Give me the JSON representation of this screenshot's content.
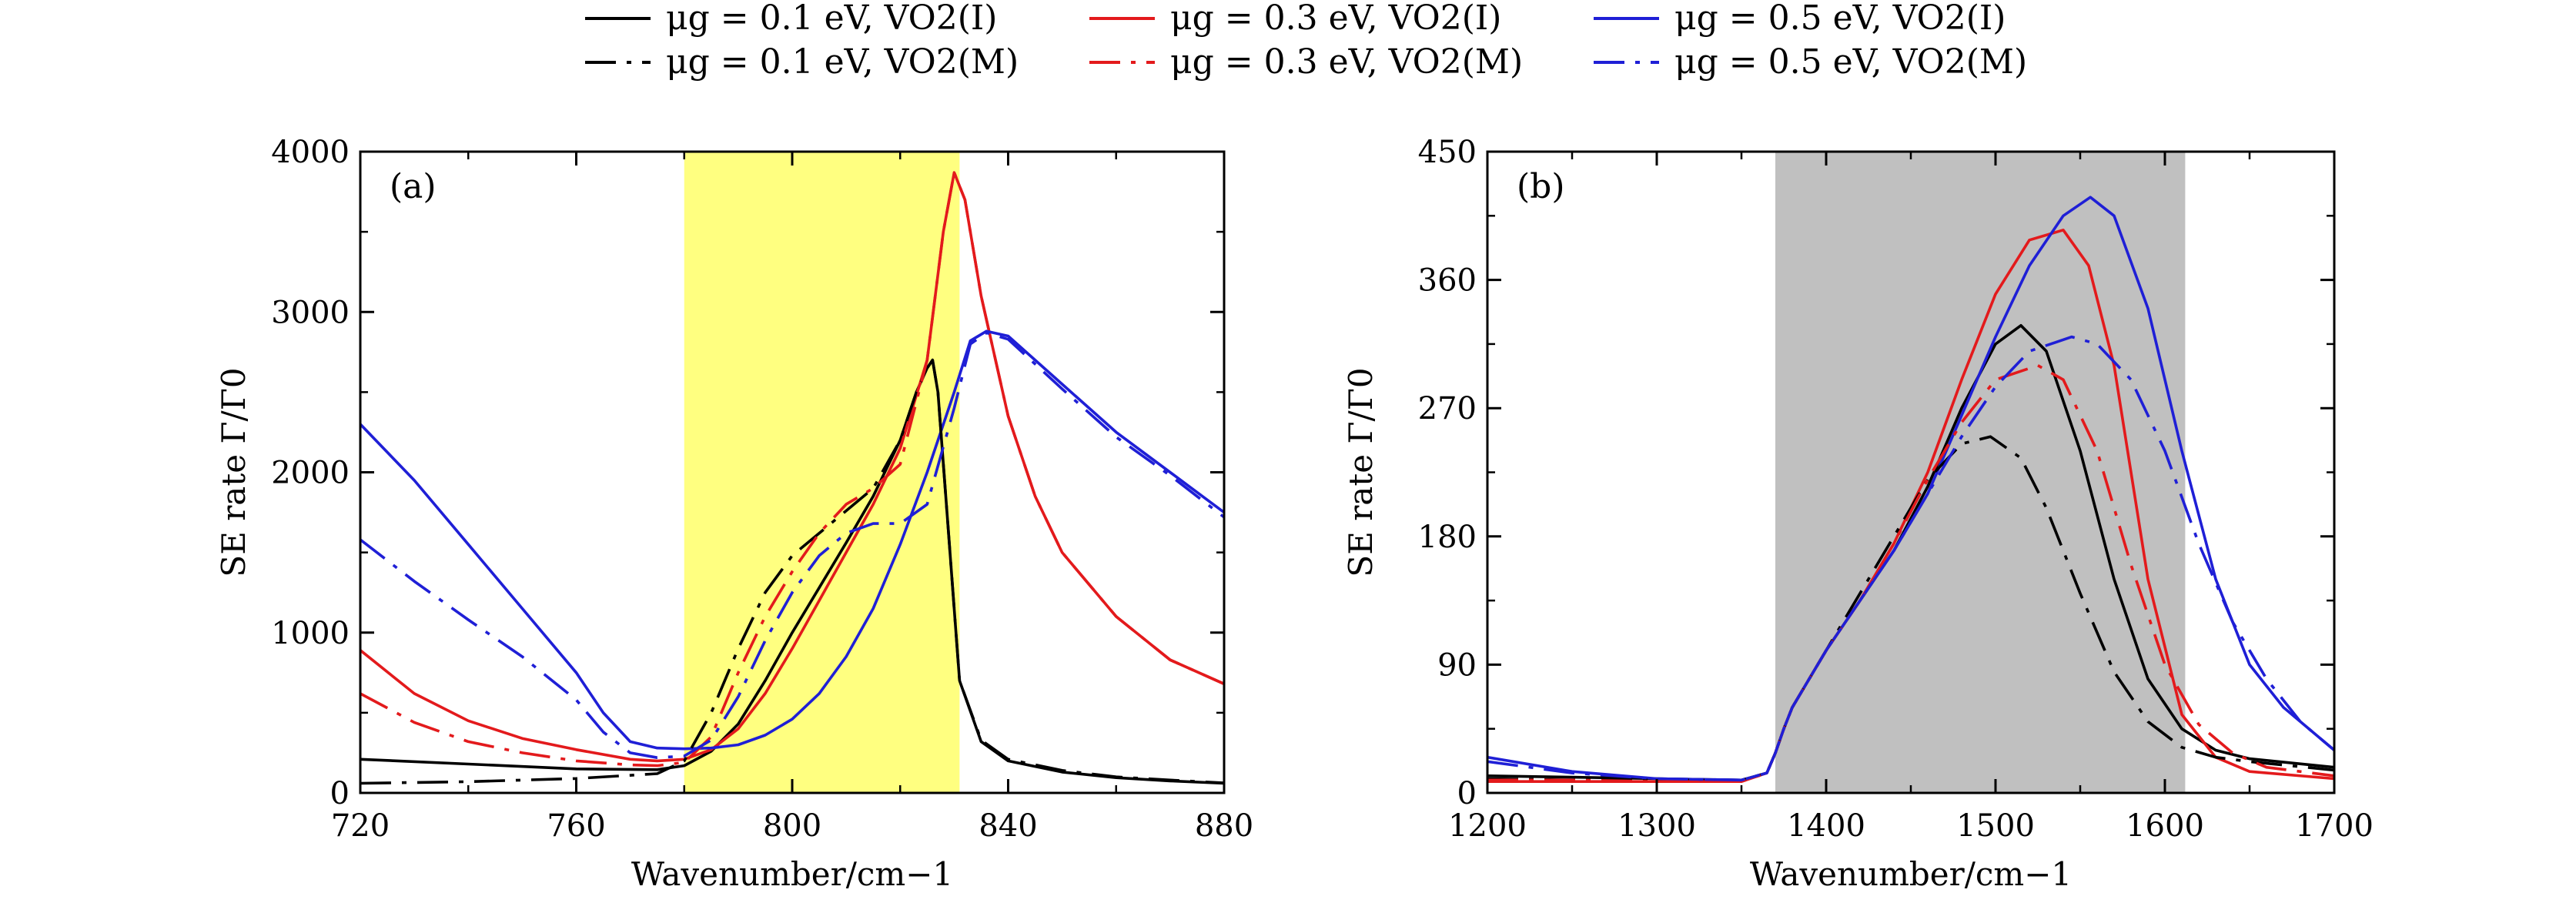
{
  "legend": [
    {
      "label": "μg = 0.1 eV, VO2(I)",
      "color": "#000000",
      "dash": "solid"
    },
    {
      "label": "μg = 0.3 eV, VO2(I)",
      "color": "#e31a1c",
      "dash": "solid"
    },
    {
      "label": "μg = 0.5 eV, VO2(I)",
      "color": "#1f1fd6",
      "dash": "solid"
    },
    {
      "label": "μg = 0.1 eV, VO2(M)",
      "color": "#000000",
      "dash": "dashdot"
    },
    {
      "label": "μg = 0.3 eV, VO2(M)",
      "color": "#e31a1c",
      "dash": "dashdot"
    },
    {
      "label": "μg = 0.5 eV, VO2(M)",
      "color": "#1f1fd6",
      "dash": "dashdot"
    }
  ],
  "chart_data": [
    {
      "type": "line",
      "panel": "(a)",
      "xlabel": "Wavenumber/cm−1",
      "ylabel": "SE rate Γ/Γ0",
      "xlim": [
        720,
        880
      ],
      "ylim": [
        0,
        4000
      ],
      "xticks": [
        720,
        760,
        800,
        840,
        880
      ],
      "yticks": [
        0,
        1000,
        2000,
        3000,
        4000
      ],
      "shaded_band": {
        "from": 780,
        "to": 831,
        "color": "#ffff80"
      },
      "series": [
        {
          "name": "μg = 0.1 eV, VO2(I)",
          "color": "#000000",
          "dash": "solid",
          "x": [
            720,
            740,
            760,
            775,
            780,
            785,
            790,
            795,
            800,
            805,
            810,
            815,
            820,
            823,
            825,
            826,
            827,
            829,
            831,
            835,
            840,
            850,
            860,
            870,
            880
          ],
          "y": [
            210,
            180,
            150,
            145,
            170,
            260,
            430,
            700,
            1000,
            1280,
            1560,
            1850,
            2200,
            2500,
            2650,
            2700,
            2500,
            1600,
            700,
            320,
            200,
            130,
            95,
            75,
            60
          ]
        },
        {
          "name": "μg = 0.3 eV, VO2(I)",
          "color": "#e31a1c",
          "dash": "solid",
          "x": [
            720,
            730,
            740,
            750,
            760,
            770,
            775,
            780,
            785,
            790,
            795,
            800,
            805,
            810,
            815,
            820,
            825,
            828,
            830,
            832,
            835,
            840,
            845,
            850,
            860,
            870,
            880
          ],
          "y": [
            890,
            620,
            450,
            340,
            270,
            210,
            200,
            210,
            270,
            400,
            620,
            900,
            1200,
            1500,
            1800,
            2150,
            2700,
            3500,
            3870,
            3700,
            3100,
            2350,
            1850,
            1500,
            1100,
            830,
            680
          ]
        },
        {
          "name": "μg = 0.5 eV, VO2(I)",
          "color": "#1f1fd6",
          "dash": "solid",
          "x": [
            720,
            730,
            740,
            750,
            760,
            765,
            770,
            775,
            780,
            785,
            790,
            795,
            800,
            805,
            810,
            815,
            820,
            825,
            830,
            833,
            836,
            840,
            850,
            860,
            870,
            880
          ],
          "y": [
            2300,
            1950,
            1550,
            1150,
            750,
            500,
            320,
            280,
            275,
            280,
            300,
            360,
            460,
            620,
            850,
            1150,
            1550,
            2000,
            2500,
            2820,
            2880,
            2850,
            2550,
            2250,
            2000,
            1750
          ]
        },
        {
          "name": "μg = 0.1 eV, VO2(M)",
          "color": "#000000",
          "dash": "dashdot",
          "x": [
            720,
            740,
            760,
            775,
            780,
            785,
            790,
            795,
            800,
            805,
            810,
            815,
            820,
            823,
            825,
            826,
            827,
            829,
            831,
            835,
            840,
            850,
            860,
            870,
            880
          ],
          "y": [
            60,
            70,
            90,
            120,
            200,
            500,
            900,
            1250,
            1480,
            1620,
            1760,
            1900,
            2200,
            2500,
            2650,
            2700,
            2500,
            1600,
            700,
            330,
            210,
            140,
            100,
            80,
            62
          ]
        },
        {
          "name": "μg = 0.3 eV, VO2(M)",
          "color": "#e31a1c",
          "dash": "dashdot",
          "x": [
            720,
            730,
            740,
            750,
            760,
            770,
            775,
            780,
            785,
            790,
            795,
            800,
            805,
            810,
            815,
            820,
            825,
            828,
            830,
            832,
            835,
            840,
            845,
            850,
            860,
            870,
            880
          ],
          "y": [
            620,
            440,
            320,
            250,
            200,
            175,
            170,
            190,
            350,
            750,
            1100,
            1380,
            1620,
            1800,
            1900,
            2050,
            2700,
            3500,
            3870,
            3700,
            3100,
            2350,
            1850,
            1500,
            1100,
            830,
            680
          ]
        },
        {
          "name": "μg = 0.5 eV, VO2(M)",
          "color": "#1f1fd6",
          "dash": "dashdot",
          "x": [
            720,
            730,
            740,
            750,
            760,
            765,
            770,
            775,
            780,
            785,
            790,
            795,
            800,
            805,
            810,
            815,
            820,
            825,
            830,
            833,
            836,
            840,
            850,
            860,
            870,
            880
          ],
          "y": [
            1580,
            1320,
            1080,
            850,
            580,
            380,
            250,
            220,
            230,
            330,
            600,
            950,
            1250,
            1480,
            1620,
            1680,
            1680,
            1800,
            2400,
            2800,
            2870,
            2830,
            2520,
            2220,
            1980,
            1720
          ]
        }
      ]
    },
    {
      "type": "line",
      "panel": "(b)",
      "xlabel": "Wavenumber/cm−1",
      "ylabel": "SE rate Γ/Γ0",
      "xlim": [
        1200,
        1700
      ],
      "ylim": [
        0,
        450
      ],
      "xticks": [
        1200,
        1300,
        1400,
        1500,
        1600,
        1700
      ],
      "yticks": [
        0,
        90,
        180,
        270,
        360,
        450
      ],
      "shaded_band": {
        "from": 1370,
        "to": 1612,
        "color": "#c0c0c0"
      },
      "series": [
        {
          "name": "μg = 0.1 eV, VO2(I)",
          "color": "#000000",
          "dash": "solid",
          "x": [
            1200,
            1250,
            1300,
            1350,
            1365,
            1370,
            1375,
            1380,
            1400,
            1420,
            1440,
            1460,
            1480,
            1500,
            1515,
            1530,
            1550,
            1570,
            1590,
            1610,
            1630,
            1650,
            1700
          ],
          "y": [
            12,
            11,
            10,
            9,
            14,
            28,
            45,
            60,
            100,
            135,
            170,
            215,
            270,
            315,
            328,
            310,
            240,
            150,
            80,
            45,
            30,
            24,
            18
          ]
        },
        {
          "name": "μg = 0.3 eV, VO2(I)",
          "color": "#e31a1c",
          "dash": "solid",
          "x": [
            1200,
            1250,
            1300,
            1350,
            1365,
            1370,
            1375,
            1380,
            1400,
            1420,
            1440,
            1460,
            1480,
            1500,
            1520,
            1540,
            1555,
            1570,
            1590,
            1610,
            1630,
            1650,
            1700
          ],
          "y": [
            8,
            8,
            8,
            8,
            14,
            28,
            45,
            60,
            100,
            135,
            175,
            225,
            290,
            350,
            388,
            395,
            370,
            300,
            150,
            55,
            25,
            15,
            10
          ]
        },
        {
          "name": "μg = 0.5 eV, VO2(I)",
          "color": "#1f1fd6",
          "dash": "solid",
          "x": [
            1200,
            1250,
            1300,
            1350,
            1365,
            1370,
            1375,
            1380,
            1400,
            1420,
            1440,
            1460,
            1480,
            1500,
            1520,
            1540,
            1556,
            1570,
            1590,
            1610,
            1630,
            1650,
            1670,
            1700
          ],
          "y": [
            25,
            15,
            10,
            9,
            14,
            28,
            45,
            60,
            100,
            135,
            170,
            210,
            265,
            320,
            370,
            405,
            418,
            405,
            340,
            240,
            150,
            90,
            60,
            30
          ]
        },
        {
          "name": "μg = 0.1 eV, VO2(M)",
          "color": "#000000",
          "dash": "dashdot",
          "x": [
            1200,
            1250,
            1300,
            1350,
            1365,
            1370,
            1375,
            1380,
            1400,
            1420,
            1440,
            1460,
            1480,
            1497,
            1515,
            1530,
            1550,
            1570,
            1590,
            1610,
            1630,
            1650,
            1700
          ],
          "y": [
            10,
            9,
            9,
            9,
            14,
            28,
            45,
            60,
            100,
            140,
            180,
            220,
            245,
            250,
            235,
            200,
            140,
            85,
            50,
            32,
            25,
            22,
            16
          ]
        },
        {
          "name": "μg = 0.3 eV, VO2(M)",
          "color": "#e31a1c",
          "dash": "dashdot",
          "x": [
            1200,
            1250,
            1300,
            1350,
            1365,
            1370,
            1375,
            1380,
            1400,
            1420,
            1440,
            1460,
            1480,
            1500,
            1525,
            1540,
            1560,
            1580,
            1600,
            1620,
            1640,
            1660,
            1700
          ],
          "y": [
            9,
            9,
            8,
            8,
            14,
            28,
            45,
            60,
            100,
            135,
            175,
            220,
            260,
            290,
            300,
            290,
            240,
            160,
            90,
            48,
            28,
            18,
            12
          ]
        },
        {
          "name": "μg = 0.5 eV, VO2(M)",
          "color": "#1f1fd6",
          "dash": "dashdot",
          "x": [
            1200,
            1250,
            1300,
            1350,
            1365,
            1370,
            1375,
            1380,
            1400,
            1420,
            1440,
            1460,
            1480,
            1500,
            1520,
            1545,
            1560,
            1580,
            1600,
            1620,
            1640,
            1660,
            1680,
            1700
          ],
          "y": [
            22,
            14,
            10,
            9,
            14,
            28,
            45,
            60,
            100,
            135,
            170,
            210,
            250,
            285,
            310,
            320,
            315,
            290,
            240,
            175,
            120,
            80,
            50,
            30
          ]
        }
      ]
    }
  ]
}
